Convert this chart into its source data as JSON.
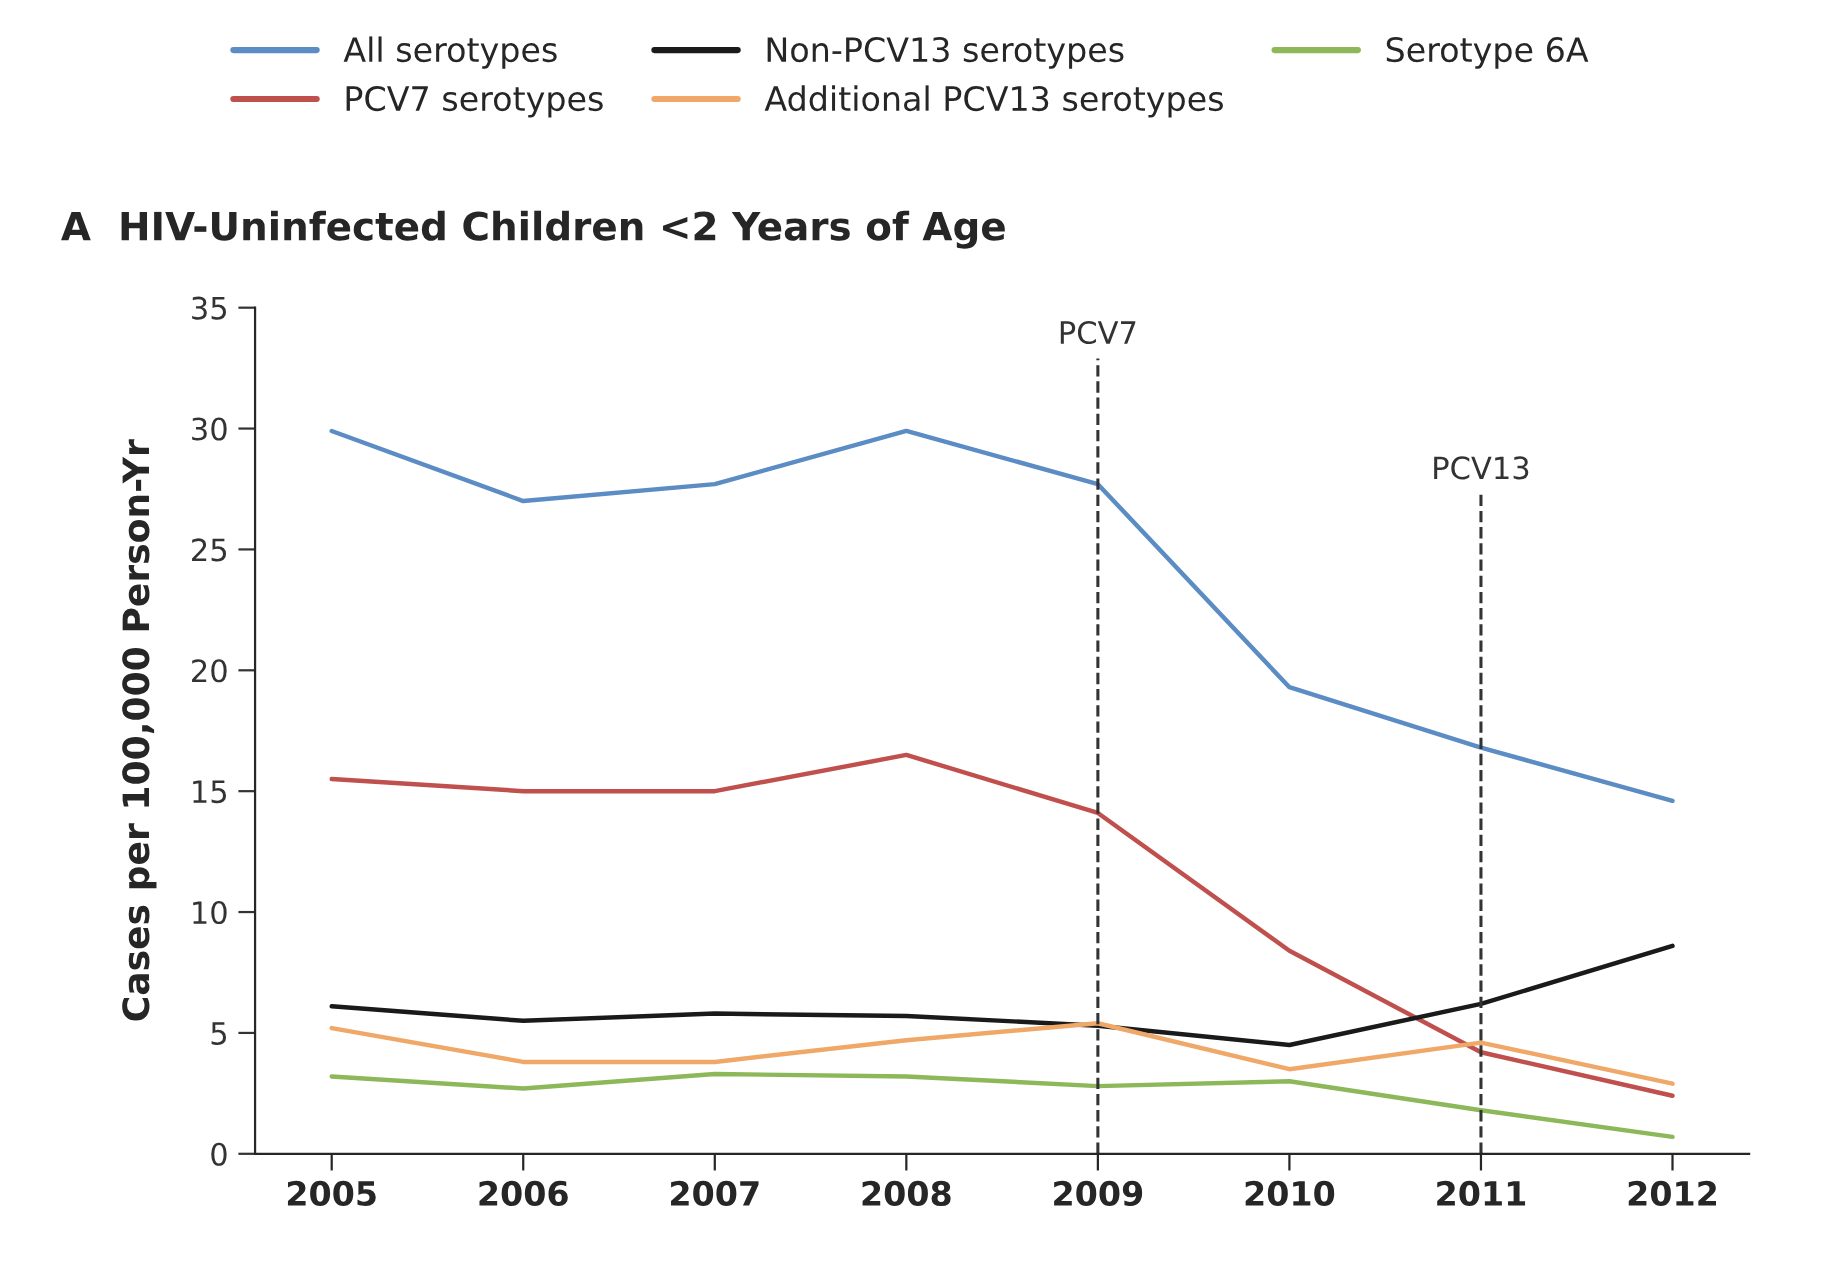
{
  "chart_data": {
    "type": "line",
    "title": "A  HIV-Uninfected Children <2 Years of Age",
    "ylabel": "Cases per 100,000 Person-Yr",
    "x": [
      2005,
      2006,
      2007,
      2008,
      2009,
      2010,
      2011,
      2012
    ],
    "series": [
      {
        "name": "All serotypes",
        "color": "#5b8cc4",
        "values": [
          29.9,
          27.0,
          27.7,
          29.9,
          27.7,
          19.3,
          16.8,
          14.6
        ]
      },
      {
        "name": "PCV7 serotypes",
        "color": "#c0504d",
        "values": [
          15.5,
          15.0,
          15.0,
          16.5,
          14.1,
          8.4,
          4.2,
          2.4
        ]
      },
      {
        "name": "Non-PCV13 serotypes",
        "color": "#1a1a1a",
        "values": [
          6.1,
          5.5,
          5.8,
          5.7,
          5.3,
          4.5,
          6.2,
          8.6
        ]
      },
      {
        "name": "Additional PCV13 serotypes",
        "color": "#f0a868",
        "values": [
          5.2,
          3.8,
          3.8,
          4.7,
          5.4,
          3.5,
          4.6,
          2.9
        ]
      },
      {
        "name": "Serotype 6A",
        "color": "#8db85a",
        "values": [
          3.2,
          2.7,
          3.3,
          3.2,
          2.8,
          3.0,
          1.8,
          0.7
        ]
      }
    ],
    "xlim": [
      2004.6,
      2012.4
    ],
    "xticks": [
      2005,
      2006,
      2007,
      2008,
      2009,
      2010,
      2011,
      2012
    ],
    "ylim": [
      0,
      35
    ],
    "yticks": [
      0,
      5,
      10,
      15,
      20,
      25,
      30,
      35
    ],
    "ref_lines": [
      {
        "axis": "x",
        "value": 2009,
        "label": "PCV7",
        "color": "#333333",
        "line_style": "dashed"
      },
      {
        "axis": "x",
        "value": 2011,
        "label": "PCV13",
        "color": "#333333",
        "line_style": "dashed"
      }
    ],
    "legend": "top",
    "grid": false,
    "marker": "none",
    "line_style": "solid"
  }
}
